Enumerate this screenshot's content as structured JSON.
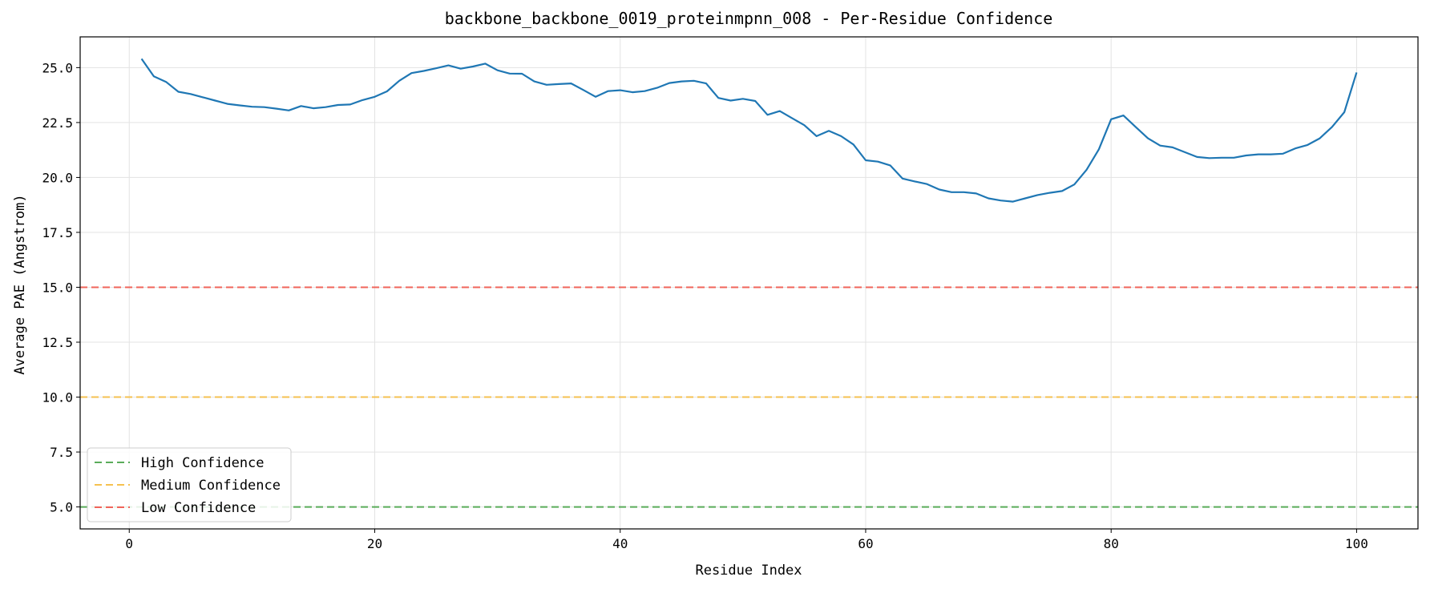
{
  "chart_data": {
    "type": "line",
    "title": "backbone_backbone_0019_proteinmpnn_008 - Per-Residue Confidence",
    "xlabel": "Residue Index",
    "ylabel": "Average PAE (Angstrom)",
    "xlim": [
      -4,
      105
    ],
    "ylim": [
      4.0,
      26.4
    ],
    "xticks": [
      0,
      20,
      40,
      60,
      80,
      100
    ],
    "xtick_labels": [
      "0",
      "20",
      "40",
      "60",
      "80",
      "100"
    ],
    "yticks": [
      5.0,
      7.5,
      10.0,
      12.5,
      15.0,
      17.5,
      20.0,
      22.5,
      25.0
    ],
    "ytick_labels": [
      "5.0",
      "7.5",
      "10.0",
      "12.5",
      "15.0",
      "17.5",
      "20.0",
      "22.5",
      "25.0"
    ],
    "grid": true,
    "legend_position": "lower-left",
    "series": [
      {
        "color": "#1f77b4",
        "x": [
          1,
          2,
          3,
          4,
          5,
          6,
          7,
          8,
          9,
          10,
          11,
          12,
          13,
          14,
          15,
          16,
          17,
          18,
          19,
          20,
          21,
          22,
          23,
          24,
          25,
          26,
          27,
          28,
          29,
          30,
          31,
          32,
          33,
          34,
          35,
          36,
          37,
          38,
          39,
          40,
          41,
          42,
          43,
          44,
          45,
          46,
          47,
          48,
          49,
          50,
          51,
          52,
          53,
          54,
          55,
          56,
          57,
          58,
          59,
          60,
          61,
          62,
          63,
          64,
          65,
          66,
          67,
          68,
          69,
          70,
          71,
          72,
          73,
          74,
          75,
          76,
          77,
          78,
          79,
          80,
          81,
          82,
          83,
          84,
          85,
          86,
          87,
          88,
          89,
          90,
          91,
          92,
          93,
          94,
          95,
          96,
          97,
          98,
          99,
          100
        ],
        "y": [
          25.4,
          24.6,
          24.35,
          23.9,
          23.8,
          23.65,
          23.5,
          23.35,
          23.28,
          23.22,
          23.2,
          23.13,
          23.05,
          23.25,
          23.15,
          23.2,
          23.3,
          23.32,
          23.52,
          23.67,
          23.92,
          24.4,
          24.75,
          24.85,
          24.97,
          25.1,
          24.95,
          25.05,
          25.18,
          24.88,
          24.73,
          24.72,
          24.37,
          24.22,
          24.25,
          24.28,
          23.98,
          23.67,
          23.93,
          23.97,
          23.88,
          23.93,
          24.08,
          24.3,
          24.37,
          24.4,
          24.28,
          23.62,
          23.5,
          23.58,
          23.48,
          22.85,
          23.02,
          22.7,
          22.38,
          21.88,
          22.12,
          21.88,
          21.5,
          20.78,
          20.72,
          20.55,
          19.95,
          19.82,
          19.7,
          19.45,
          19.33,
          19.33,
          19.27,
          19.05,
          18.95,
          18.9,
          19.05,
          19.2,
          19.3,
          19.38,
          19.68,
          20.35,
          21.28,
          22.65,
          22.82,
          22.3,
          21.78,
          21.45,
          21.37,
          21.15,
          20.93,
          20.88,
          20.9,
          20.9,
          21.0,
          21.05,
          21.05,
          21.08,
          21.32,
          21.48,
          21.78,
          22.3,
          22.97,
          24.78
        ]
      }
    ],
    "reference_lines": [
      {
        "label": "High Confidence",
        "y": 5.0,
        "color": "#5aac5a"
      },
      {
        "label": "Medium Confidence",
        "y": 10.0,
        "color": "#f5c150"
      },
      {
        "label": "Low Confidence",
        "y": 15.0,
        "color": "#f0645a"
      }
    ]
  }
}
